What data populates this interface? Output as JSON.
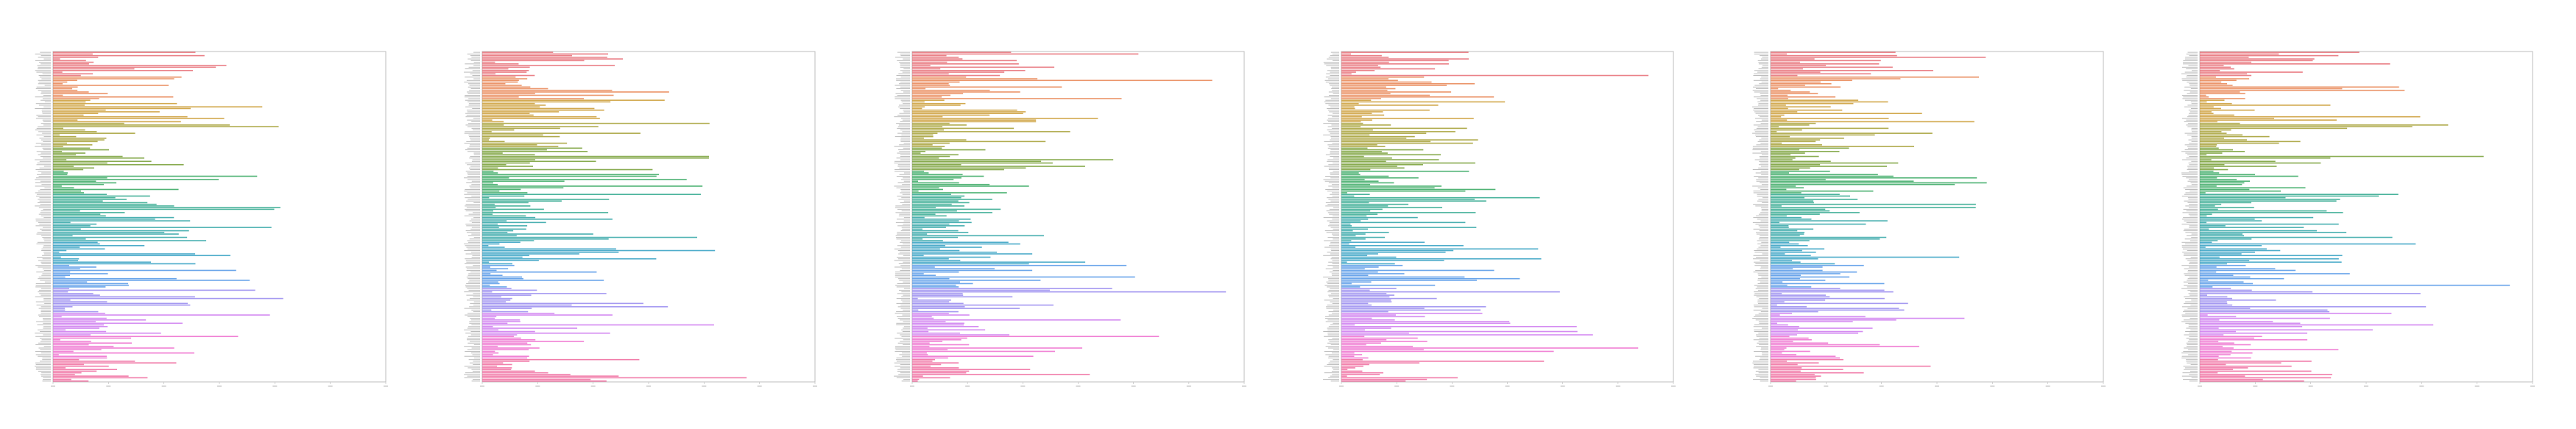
{
  "chart_data": [
    {
      "type": "bar",
      "orientation": "horizontal",
      "panel_index": 0,
      "categories": [],
      "values": [],
      "xlim": [
        0,
        6
      ],
      "grid": false,
      "legend": "none",
      "palette": [
        "#e8727a",
        "#e98a5a",
        "#cda03c",
        "#a7a23a",
        "#7ba23c",
        "#3dab66",
        "#36ab91",
        "#36a7a8",
        "#3aa3c4",
        "#5a9be8",
        "#9b8ef0",
        "#cf7ef0",
        "#ee72cf",
        "#f06fa1"
      ]
    },
    {
      "type": "bar",
      "orientation": "horizontal",
      "panel_index": 1,
      "categories": [],
      "values": [],
      "xlim": [
        0,
        6
      ],
      "grid": false,
      "legend": "none",
      "palette": [
        "#e8727a",
        "#e98a5a",
        "#cda03c",
        "#a7a23a",
        "#7ba23c",
        "#3dab66",
        "#36ab91",
        "#36a7a8",
        "#3aa3c4",
        "#5a9be8",
        "#9b8ef0",
        "#cf7ef0",
        "#ee72cf",
        "#f06fa1"
      ]
    },
    {
      "type": "bar",
      "orientation": "horizontal",
      "panel_index": 2,
      "categories": [],
      "values": [],
      "xlim": [
        0,
        6
      ],
      "grid": false,
      "legend": "none",
      "palette": [
        "#e8727a",
        "#e98a5a",
        "#cda03c",
        "#a7a23a",
        "#7ba23c",
        "#3dab66",
        "#36ab91",
        "#36a7a8",
        "#3aa3c4",
        "#5a9be8",
        "#9b8ef0",
        "#cf7ef0",
        "#ee72cf",
        "#f06fa1"
      ]
    },
    {
      "type": "bar",
      "orientation": "horizontal",
      "panel_index": 3,
      "categories": [],
      "values": [],
      "xlim": [
        0,
        6
      ],
      "grid": false,
      "legend": "none",
      "palette": [
        "#e8727a",
        "#e98a5a",
        "#cda03c",
        "#a7a23a",
        "#7ba23c",
        "#3dab66",
        "#36ab91",
        "#36a7a8",
        "#3aa3c4",
        "#5a9be8",
        "#9b8ef0",
        "#cf7ef0",
        "#ee72cf",
        "#f06fa1"
      ]
    },
    {
      "type": "bar",
      "orientation": "horizontal",
      "panel_index": 4,
      "categories": [],
      "values": [],
      "xlim": [
        0,
        6
      ],
      "grid": false,
      "legend": "none",
      "palette": [
        "#e8727a",
        "#e98a5a",
        "#cda03c",
        "#a7a23a",
        "#7ba23c",
        "#3dab66",
        "#36ab91",
        "#36a7a8",
        "#3aa3c4",
        "#5a9be8",
        "#9b8ef0",
        "#cf7ef0",
        "#ee72cf",
        "#f06fa1"
      ]
    },
    {
      "type": "bar",
      "orientation": "horizontal",
      "panel_index": 5,
      "categories": [],
      "values": [],
      "xlim": [
        0,
        6
      ],
      "grid": false,
      "legend": "none",
      "palette": [
        "#e8727a",
        "#e98a5a",
        "#cda03c",
        "#a7a23a",
        "#7ba23c",
        "#3dab66",
        "#36ab91",
        "#36a7a8",
        "#3aa3c4",
        "#5a9be8",
        "#9b8ef0",
        "#cf7ef0",
        "#ee72cf",
        "#f06fa1"
      ]
    }
  ]
}
